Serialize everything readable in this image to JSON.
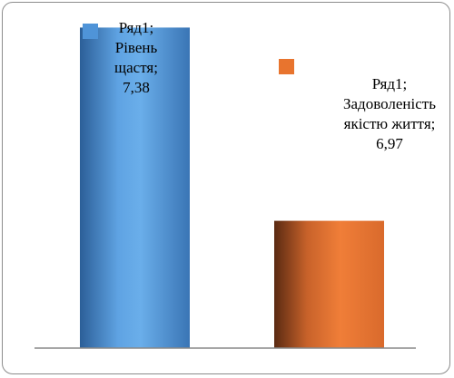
{
  "chart_data": {
    "type": "bar",
    "categories": [
      "Рівень щастя",
      "Задоволеність якістю життя"
    ],
    "series": [
      {
        "name": "Ряд1",
        "values": [
          7.38,
          6.97
        ]
      }
    ],
    "data_labels": [
      [
        "Ряд1;",
        "Рівень",
        "щастя;",
        "7,38"
      ],
      [
        "Ряд1;",
        "Задоволеність",
        "якістю життя;",
        "6,97"
      ]
    ],
    "colors": [
      "#4f94d8",
      "#e8742e"
    ],
    "ylim": [
      6.7,
      7.4
    ],
    "grid": false
  }
}
